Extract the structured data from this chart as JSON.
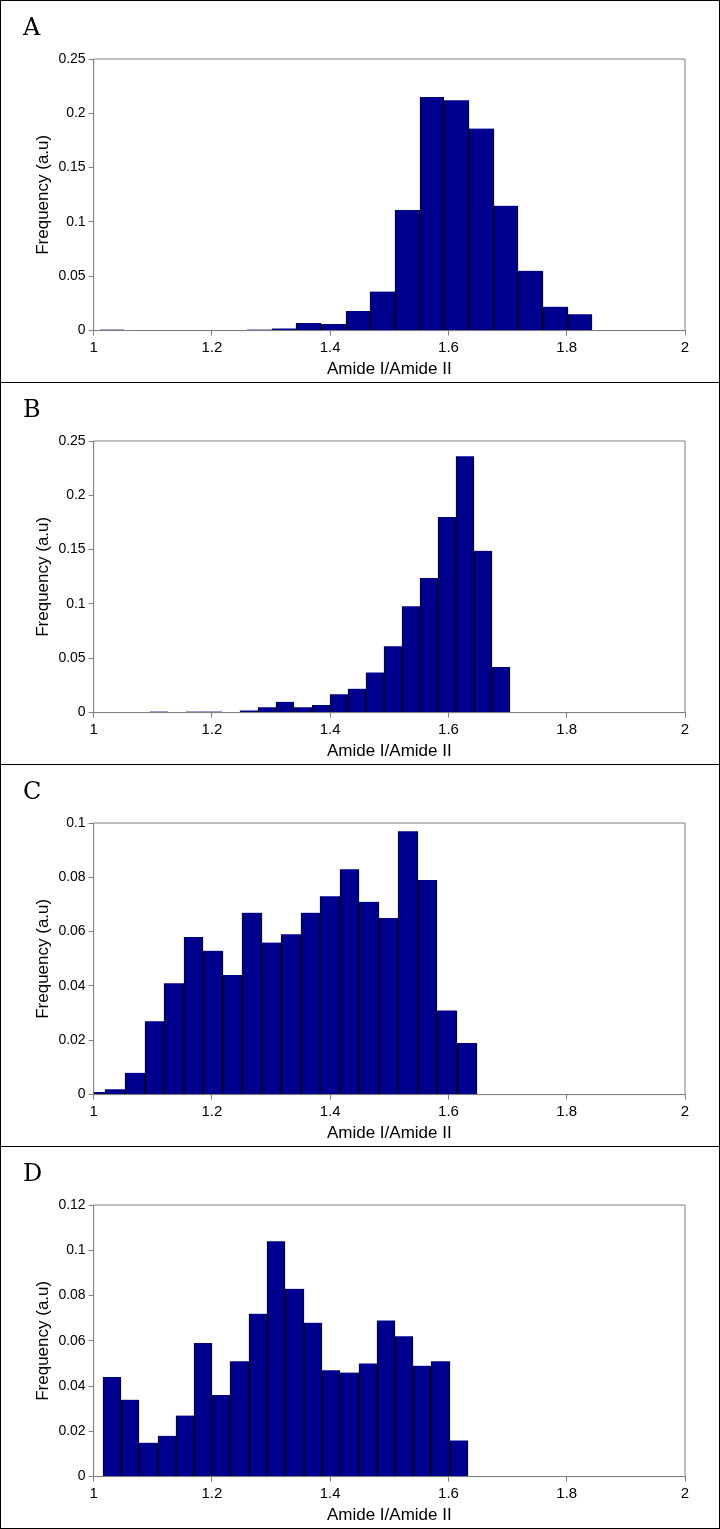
{
  "chart_data": [
    {
      "type": "histogram",
      "title": "A",
      "xlabel": "Amide I/Amide II",
      "ylabel": "Frequency (a.u)",
      "color": "#00008f",
      "grid": false,
      "xlim": [
        1,
        2
      ],
      "xticks": [
        1,
        1.2,
        1.4,
        1.6,
        1.8,
        2
      ],
      "ylim": [
        0,
        0.25
      ],
      "yticks": [
        0,
        0.05,
        0.1,
        0.15,
        0.2,
        0.25
      ],
      "bins": [
        1.01,
        1.052,
        1.093,
        1.135,
        1.177,
        1.218,
        1.26,
        1.302,
        1.343,
        1.385,
        1.427,
        1.468,
        1.51,
        1.552,
        1.593,
        1.635,
        1.677,
        1.718,
        1.76,
        1.802,
        1.843
      ],
      "values": [
        0.001,
        0,
        0,
        0,
        0,
        0,
        0.001,
        0.002,
        0.007,
        0.006,
        0.018,
        0.036,
        0.111,
        0.215,
        0.212,
        0.186,
        0.115,
        0.055,
        0.022,
        0.015
      ]
    },
    {
      "type": "histogram",
      "title": "B",
      "xlabel": "Amide I/Amide II",
      "ylabel": "Frequency (a.u)",
      "color": "#00008f",
      "grid": false,
      "xlim": [
        1,
        2
      ],
      "xticks": [
        1,
        1.2,
        1.4,
        1.6,
        1.8,
        2
      ],
      "ylim": [
        0,
        0.25
      ],
      "yticks": [
        0,
        0.05,
        0.1,
        0.15,
        0.2,
        0.25
      ],
      "bins": [
        1.095,
        1.125,
        1.156,
        1.186,
        1.217,
        1.247,
        1.278,
        1.308,
        1.339,
        1.369,
        1.4,
        1.43,
        1.461,
        1.491,
        1.521,
        1.552,
        1.582,
        1.613,
        1.643,
        1.674,
        1.704
      ],
      "values": [
        0.001,
        0,
        0.001,
        0.001,
        0,
        0.002,
        0.005,
        0.01,
        0.005,
        0.007,
        0.017,
        0.022,
        0.037,
        0.061,
        0.098,
        0.124,
        0.18,
        0.236,
        0.149,
        0.042
      ]
    },
    {
      "type": "histogram",
      "title": "C",
      "xlabel": "Amide I/Amide II",
      "ylabel": "Frequency (a.u)",
      "color": "#00008f",
      "grid": false,
      "xlim": [
        1,
        2
      ],
      "xticks": [
        1,
        1.2,
        1.4,
        1.6,
        1.8,
        2
      ],
      "ylim": [
        0,
        0.1
      ],
      "yticks": [
        0,
        0.02,
        0.04,
        0.06,
        0.08,
        0.1
      ],
      "bins": [
        1.0,
        1.02,
        1.053,
        1.086,
        1.119,
        1.152,
        1.185,
        1.218,
        1.251,
        1.284,
        1.317,
        1.35,
        1.383,
        1.416,
        1.449,
        1.482,
        1.515,
        1.548,
        1.581,
        1.614,
        1.648
      ],
      "values": [
        0.001,
        0.002,
        0.008,
        0.027,
        0.041,
        0.058,
        0.053,
        0.044,
        0.067,
        0.056,
        0.059,
        0.067,
        0.073,
        0.083,
        0.071,
        0.065,
        0.097,
        0.079,
        0.031,
        0.019
      ]
    },
    {
      "type": "histogram",
      "title": "D",
      "xlabel": "Amide I/Amide II",
      "ylabel": "Frequency (a.u)",
      "color": "#00008f",
      "grid": false,
      "xlim": [
        1,
        2
      ],
      "xticks": [
        1,
        1.2,
        1.4,
        1.6,
        1.8,
        2
      ],
      "ylim": [
        0,
        0.12
      ],
      "yticks": [
        0,
        0.02,
        0.04,
        0.06,
        0.08,
        0.1,
        0.12
      ],
      "bins": [
        1.015,
        1.046,
        1.077,
        1.108,
        1.139,
        1.17,
        1.2,
        1.231,
        1.262,
        1.293,
        1.324,
        1.355,
        1.386,
        1.417,
        1.448,
        1.479,
        1.51,
        1.54,
        1.571,
        1.602,
        1.633
      ],
      "values": [
        0.044,
        0.034,
        0.015,
        0.018,
        0.027,
        0.059,
        0.036,
        0.051,
        0.072,
        0.104,
        0.083,
        0.068,
        0.047,
        0.046,
        0.05,
        0.069,
        0.062,
        0.049,
        0.051,
        0.016
      ]
    }
  ]
}
